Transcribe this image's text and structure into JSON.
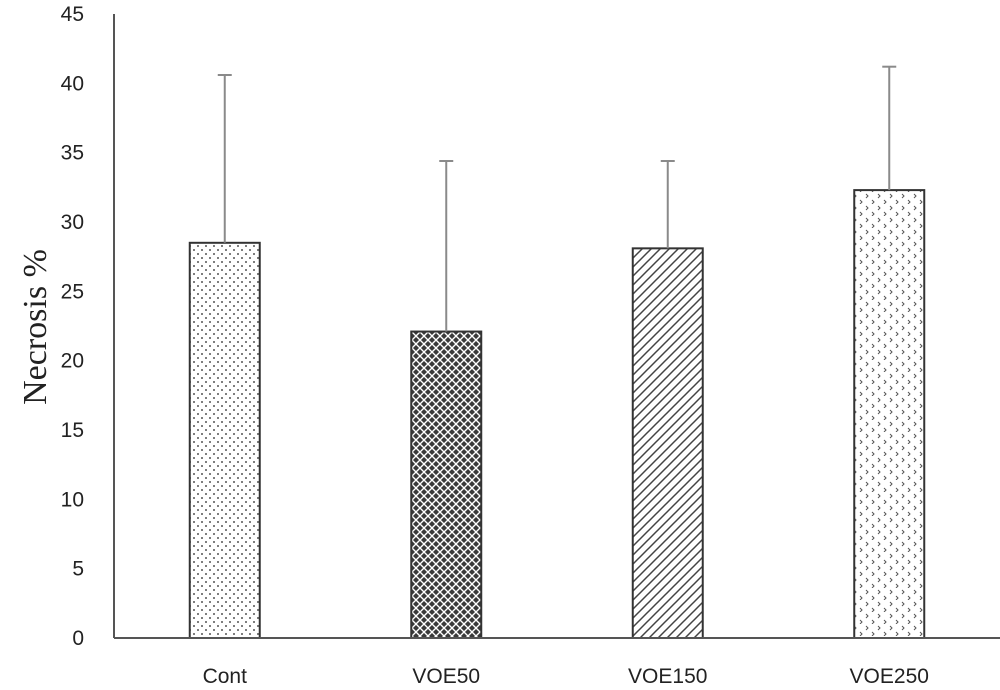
{
  "chart_data": {
    "type": "bar",
    "categories": [
      "Cont",
      "VOE50",
      "VOE150",
      "VOE250"
    ],
    "values": [
      28.5,
      22.1,
      28.1,
      32.3
    ],
    "error_upper": [
      40.6,
      34.4,
      34.4,
      41.2
    ],
    "ylabel": "Necrosis %",
    "xlabel": "",
    "ylim": [
      0,
      45
    ],
    "yticks": [
      "0",
      "5",
      "10",
      "15",
      "20",
      "25",
      "30",
      "35",
      "40",
      "45"
    ],
    "grid": false,
    "legend": "none",
    "patterns": [
      "dots",
      "crosshatch",
      "diagonal-hatch",
      "chevron-dots"
    ],
    "colors": {
      "bar_fill": "#ffffff",
      "bar_stroke": "#333333",
      "crosshatch_fill": "#3a3a3a",
      "error_bar": "#8a8a8a",
      "axis": "#555555",
      "text": "#222222"
    }
  }
}
